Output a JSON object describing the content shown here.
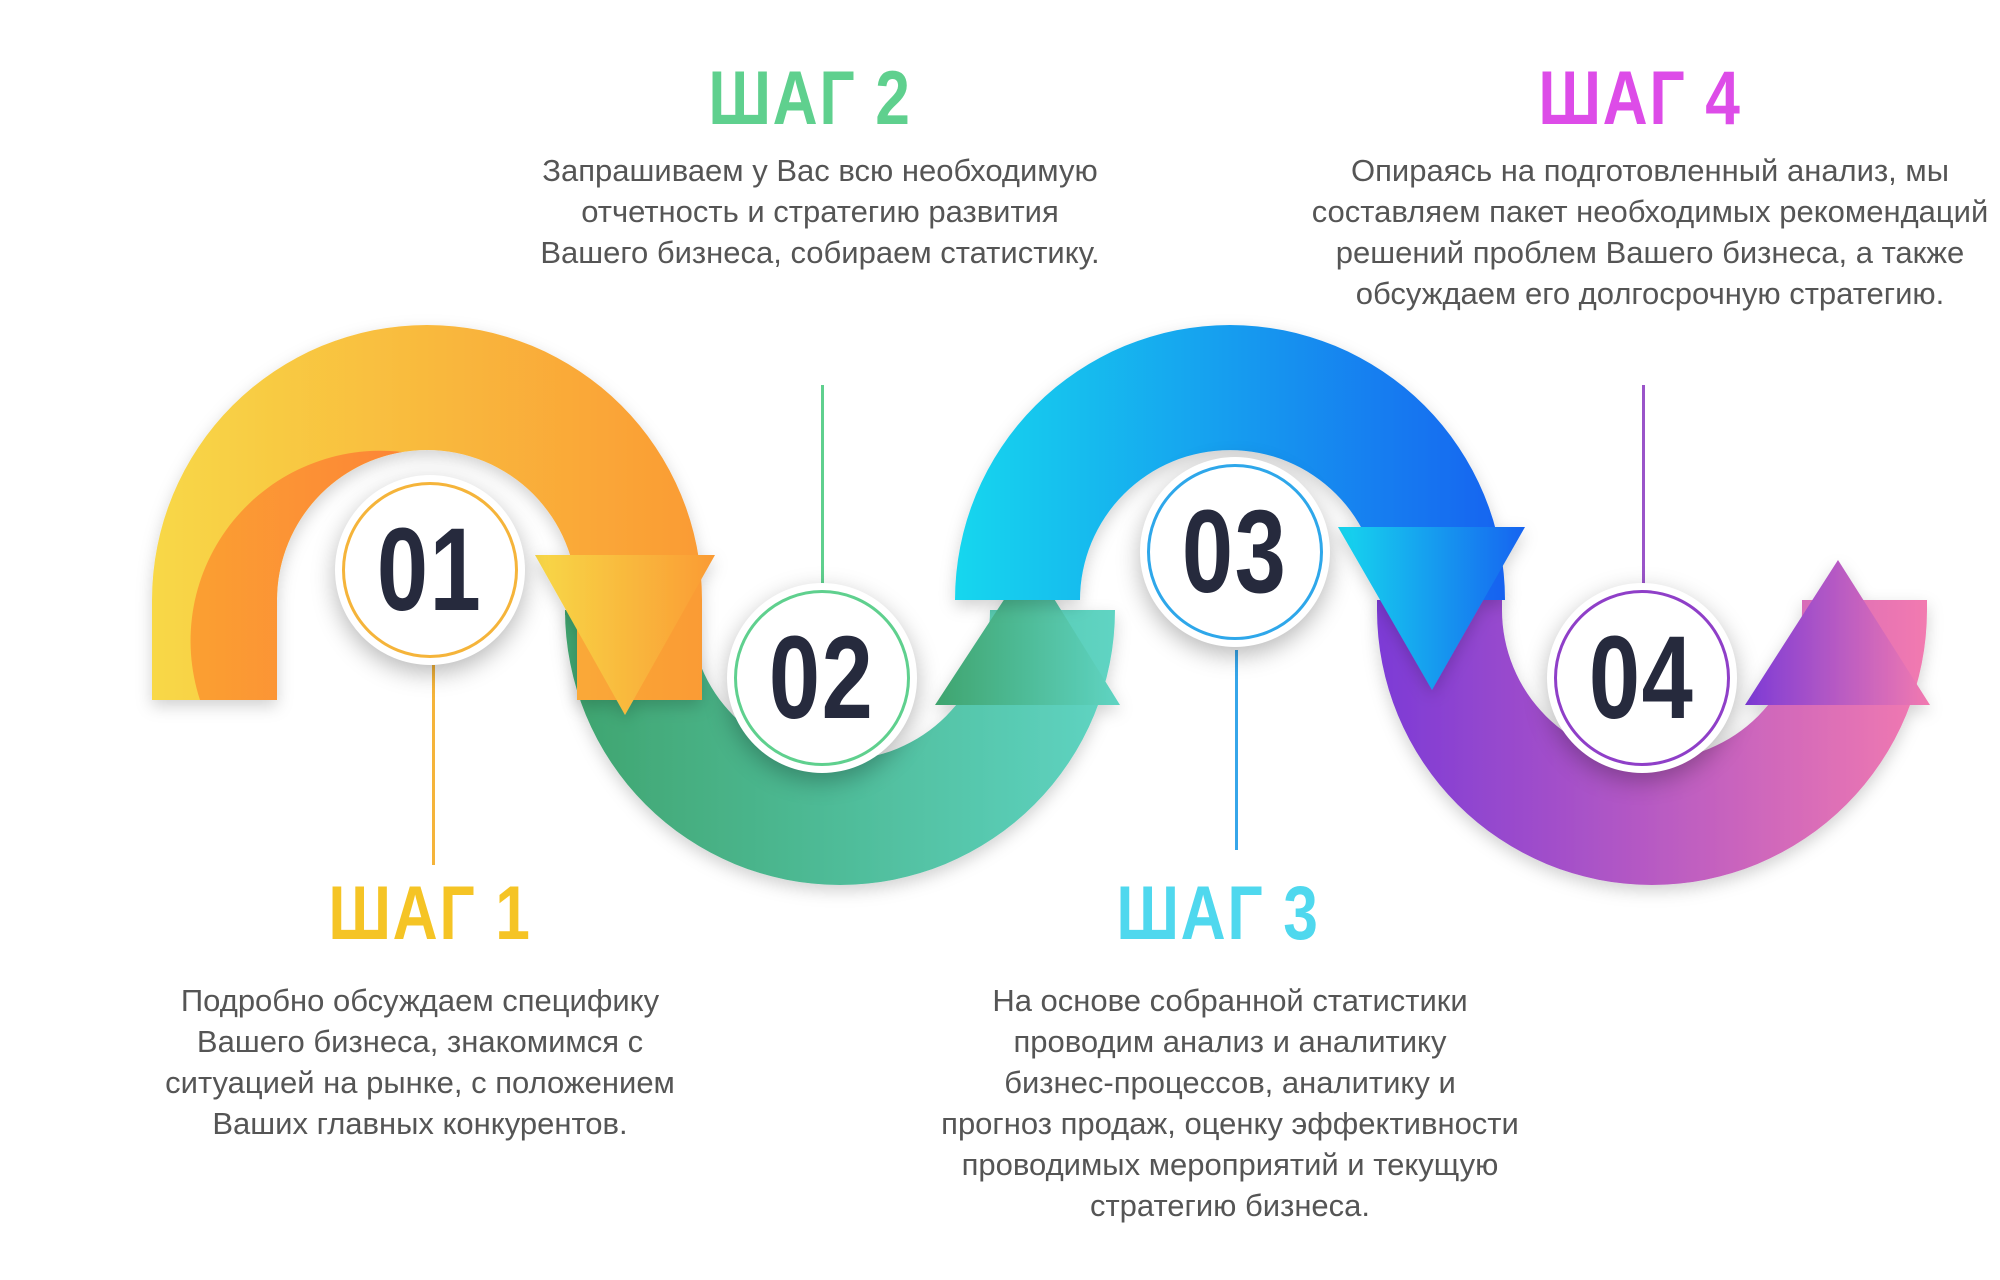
{
  "colors": {
    "step1": "#f5c425",
    "step2": "#5fd08e",
    "step3": "#4fd8ee",
    "step4": "#dd4ce8",
    "numbers": "#262a3d",
    "text": "#555555"
  },
  "steps": [
    {
      "number": "01",
      "title": "ШАГ 1",
      "lines": [
        "Подробно обсуждаем специфику",
        "Вашего бизнеса, знакомимся с",
        "ситуацией на рынке, с положением",
        "Ваших главных конкурентов."
      ]
    },
    {
      "number": "02",
      "title": "ШАГ 2",
      "lines": [
        "Запрашиваем у Вас всю необходимую",
        "отчетность и стратегию развития",
        "Вашего бизнеса, собираем статистику."
      ]
    },
    {
      "number": "03",
      "title": "ШАГ 3",
      "lines": [
        "На основе собранной статистики",
        "проводим анализ и аналитику",
        "бизнес-процессов, аналитику и",
        "прогноз продаж, оценку эффективности",
        "проводимых мероприятий и текущую",
        "стратегию бизнеса."
      ]
    },
    {
      "number": "04",
      "title": "ШАГ 4",
      "lines": [
        "Опираясь на подготовленный анализ, мы",
        "составляем пакет необходимых рекомендаций",
        "решений проблем Вашего бизнеса, а также",
        "обсуждаем его долгосрочную стратегию."
      ]
    }
  ]
}
